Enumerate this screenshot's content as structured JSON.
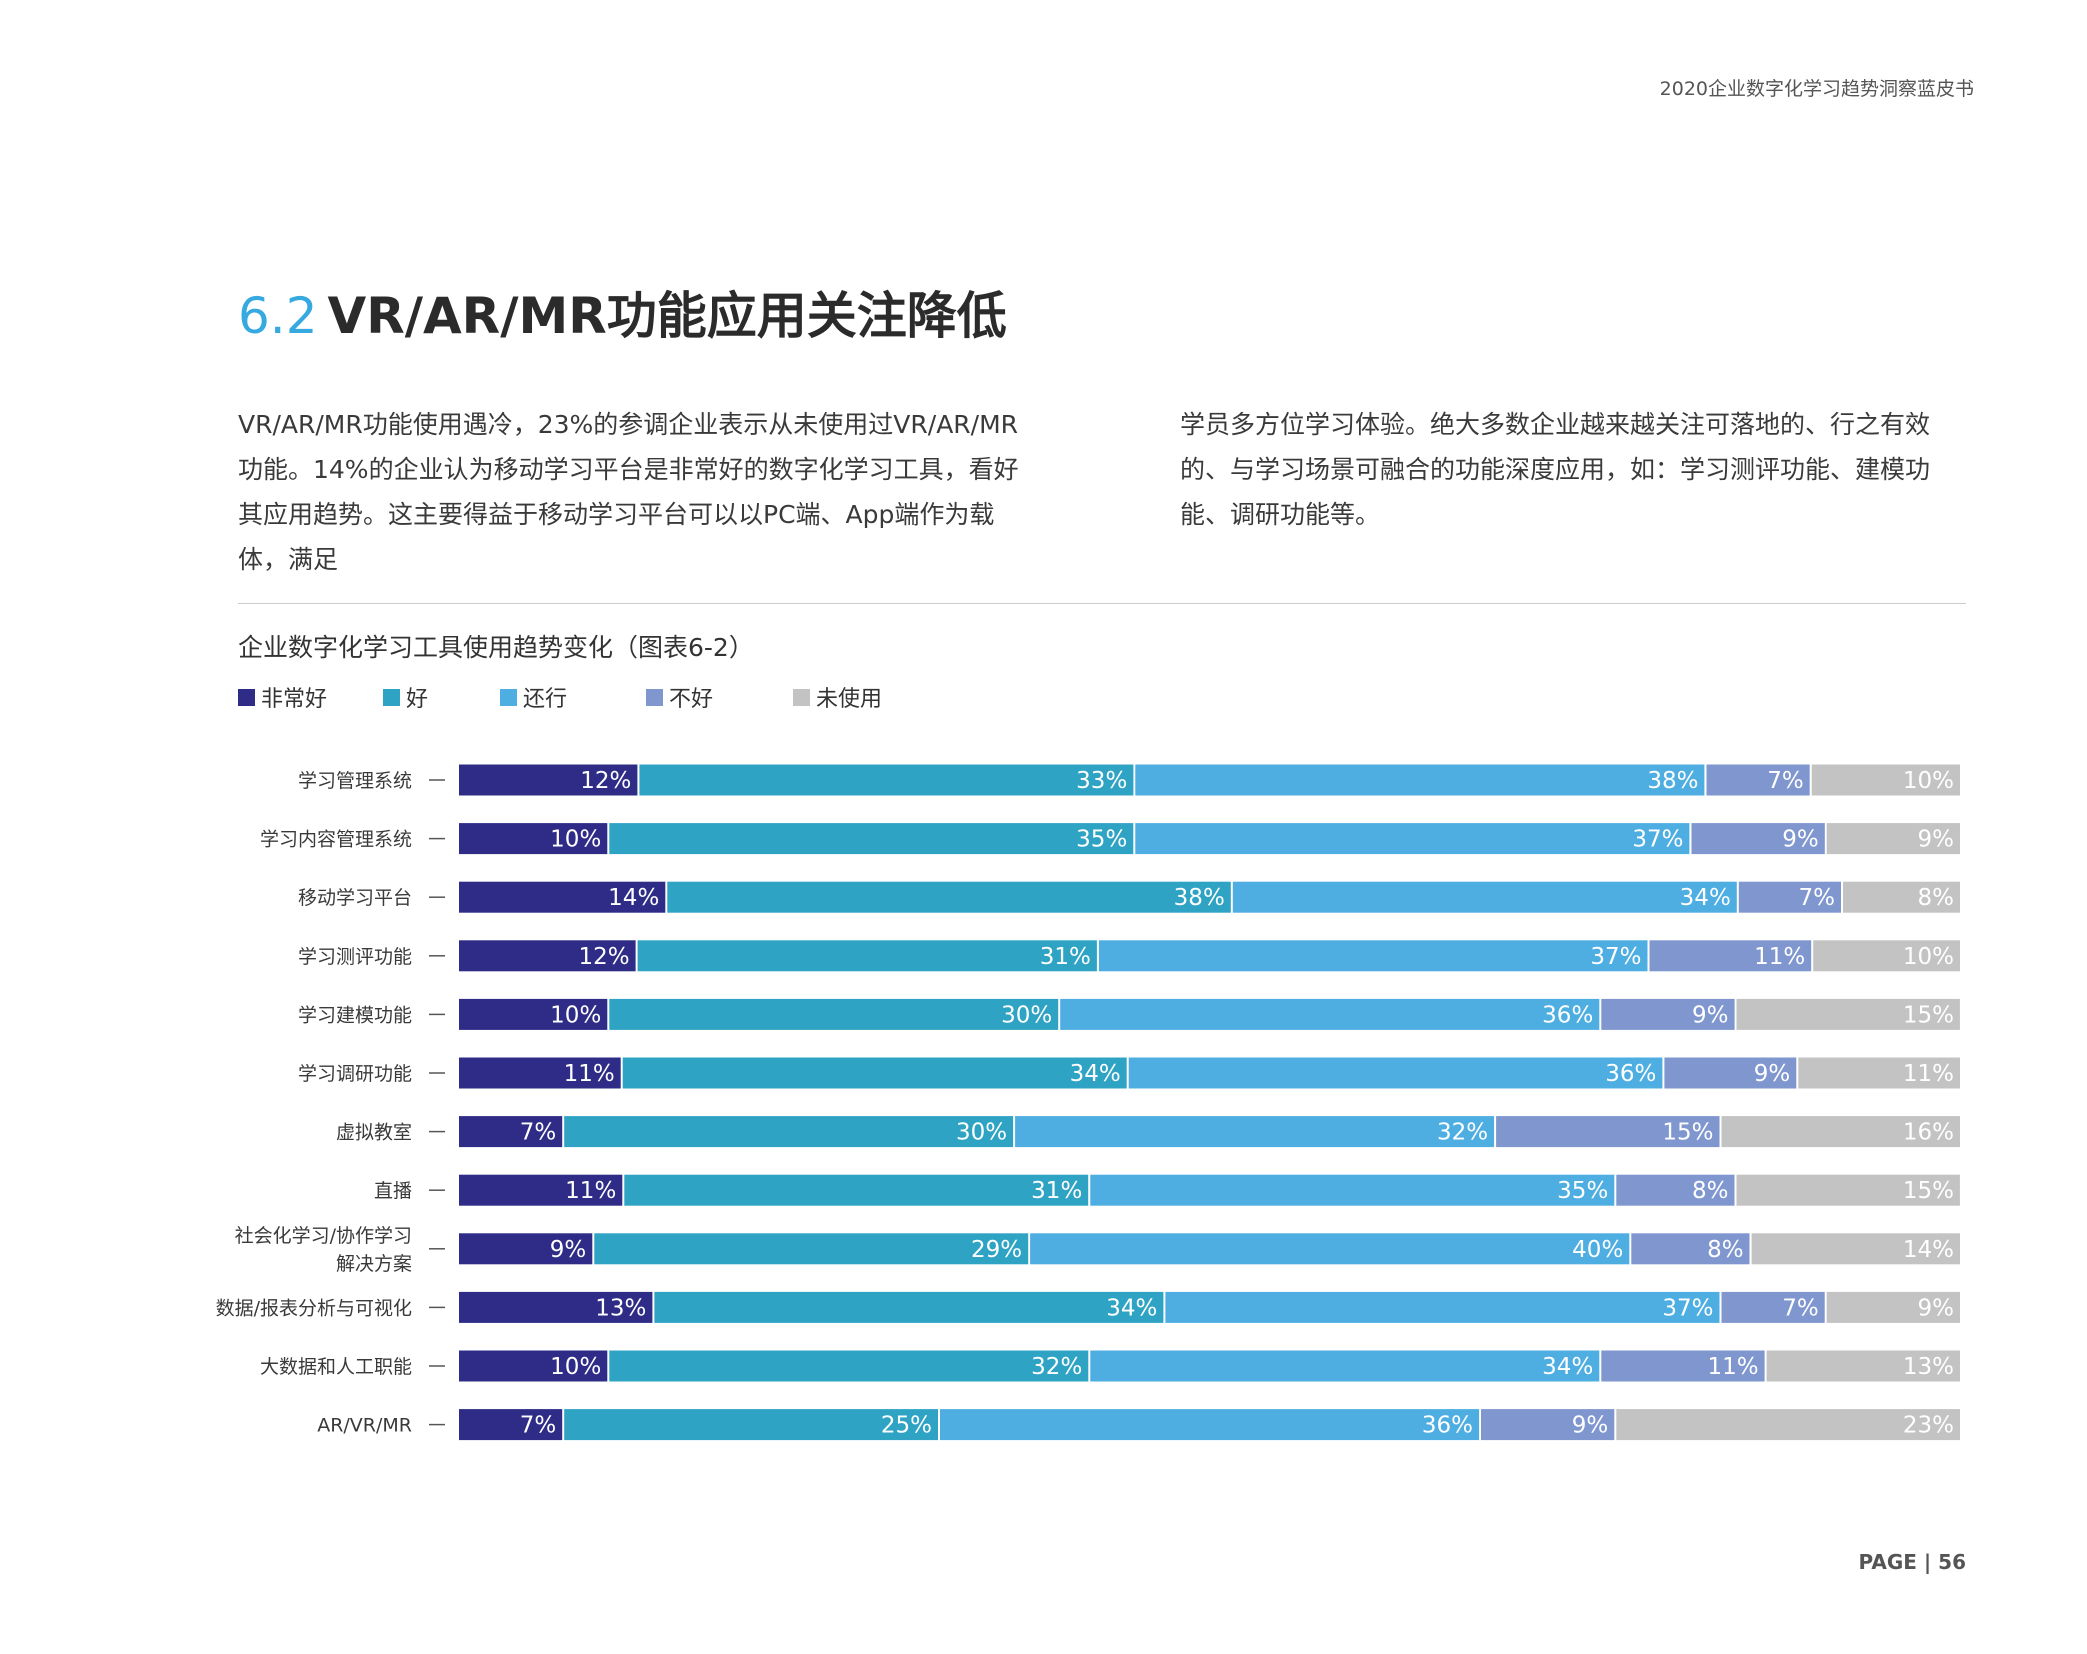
{
  "header": {
    "text": "2020企业数字化学习趋势洞察蓝皮书"
  },
  "section": {
    "number": "6.2",
    "title": "VR/AR/MR功能应用关注降低"
  },
  "paragraph_left": "VR/AR/MR功能使用遇冷，23%的参调企业表示从未使用过VR/AR/MR功能。14%的企业认为移动学习平台是非常好的数字化学习工具，看好其应用趋势。这主要得益于移动学习平台可以以PC端、App端作为载体，满足",
  "paragraph_right": "学员多方位学习体验。绝大多数企业越来越关注可落地的、行之有效的、与学习场景可融合的功能深度应用，如：学习测评功能、建模功能、调研功能等。",
  "footer": {
    "page": "PAGE | 56"
  },
  "colors": {
    "非常好": "#2e2c86",
    "好": "#2fa3c4",
    "还行": "#4eaee2",
    "不好": "#7f96cf",
    "未使用": "#c3c3c3"
  },
  "chart_data": {
    "type": "bar",
    "orientation": "horizontal-stacked-100",
    "title": "企业数字化学习工具使用趋势变化（图表6-2）",
    "legend_position": "top-left",
    "categories": [
      "学习管理系统",
      "学习内容管理系统",
      "移动学习平台",
      "学习测评功能",
      "学习建模功能",
      "学习调研功能",
      "虚拟教室",
      "直播",
      "社会化学习/协作学习解决方案",
      "数据/报表分析与可视化",
      "大数据和人工职能",
      "AR/VR/MR"
    ],
    "category_lines": [
      [
        "学习管理系统"
      ],
      [
        "学习内容管理系统"
      ],
      [
        "移动学习平台"
      ],
      [
        "学习测评功能"
      ],
      [
        "学习建模功能"
      ],
      [
        "学习调研功能"
      ],
      [
        "虚拟教室"
      ],
      [
        "直播"
      ],
      [
        "社会化学习/协作学习",
        "解决方案"
      ],
      [
        "数据/报表分析与可视化"
      ],
      [
        "大数据和人工职能"
      ],
      [
        "AR/VR/MR"
      ]
    ],
    "series": [
      {
        "name": "非常好",
        "values": [
          12,
          10,
          14,
          12,
          10,
          11,
          7,
          11,
          9,
          13,
          10,
          7
        ]
      },
      {
        "name": "好",
        "values": [
          33,
          35,
          38,
          31,
          30,
          34,
          30,
          31,
          29,
          34,
          32,
          25
        ]
      },
      {
        "name": "还行",
        "values": [
          38,
          37,
          34,
          37,
          36,
          36,
          32,
          35,
          40,
          37,
          34,
          36
        ]
      },
      {
        "name": "不好",
        "values": [
          7,
          9,
          7,
          11,
          9,
          9,
          15,
          8,
          8,
          7,
          11,
          9
        ]
      },
      {
        "name": "未使用",
        "values": [
          10,
          9,
          8,
          10,
          15,
          11,
          16,
          15,
          14,
          9,
          13,
          23
        ]
      }
    ],
    "value_suffix": "%",
    "xlim": [
      0,
      100
    ]
  }
}
